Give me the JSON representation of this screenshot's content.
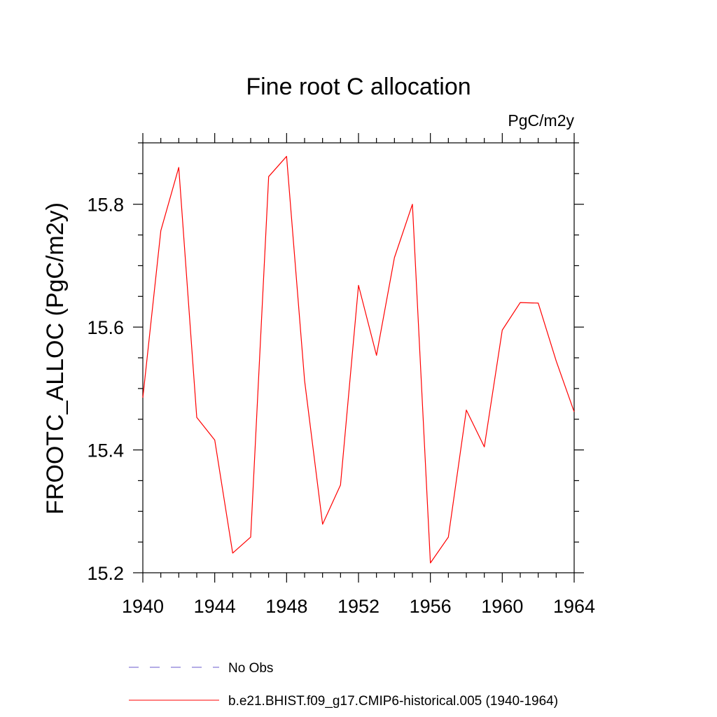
{
  "chart_data": {
    "type": "line",
    "title": "Fine root C allocation",
    "units_label": "PgC/m2y",
    "xlabel": "",
    "ylabel": "FROOTC_ALLOC  (PgC/m2y)",
    "xlim": [
      1940,
      1964
    ],
    "ylim": [
      15.2,
      15.9
    ],
    "x_ticks": [
      1940,
      1944,
      1948,
      1952,
      1956,
      1960,
      1964
    ],
    "x_tick_labels": [
      "1940",
      "1944",
      "1948",
      "1952",
      "1956",
      "1960",
      "1964"
    ],
    "y_ticks": [
      15.2,
      15.4,
      15.6,
      15.8
    ],
    "y_tick_labels": [
      "15.2",
      "15.4",
      "15.6",
      "15.8"
    ],
    "grid": false,
    "series": [
      {
        "name": "b.e21.BHIST.f09_g17.CMIP6-historical.005 (1940-1964)",
        "color": "#ff0000",
        "x": [
          1940,
          1941,
          1942,
          1943,
          1944,
          1945,
          1946,
          1947,
          1948,
          1949,
          1950,
          1951,
          1952,
          1953,
          1954,
          1955,
          1956,
          1957,
          1958,
          1959,
          1960,
          1961,
          1962,
          1963,
          1964
        ],
        "values": [
          15.485,
          15.757,
          15.86,
          15.453,
          15.416,
          15.232,
          15.258,
          15.845,
          15.878,
          15.513,
          15.279,
          15.343,
          15.668,
          15.554,
          15.713,
          15.8,
          15.216,
          15.258,
          15.465,
          15.405,
          15.595,
          15.64,
          15.639,
          15.545,
          15.462
        ]
      }
    ],
    "legend": {
      "placement": "bottom",
      "entries": [
        {
          "label": "No Obs",
          "color": "#6a5acd",
          "style": "dashed"
        },
        {
          "label": "b.e21.BHIST.f09_g17.CMIP6-historical.005 (1940-1964)",
          "color": "#ff0000",
          "style": "solid"
        }
      ]
    }
  }
}
